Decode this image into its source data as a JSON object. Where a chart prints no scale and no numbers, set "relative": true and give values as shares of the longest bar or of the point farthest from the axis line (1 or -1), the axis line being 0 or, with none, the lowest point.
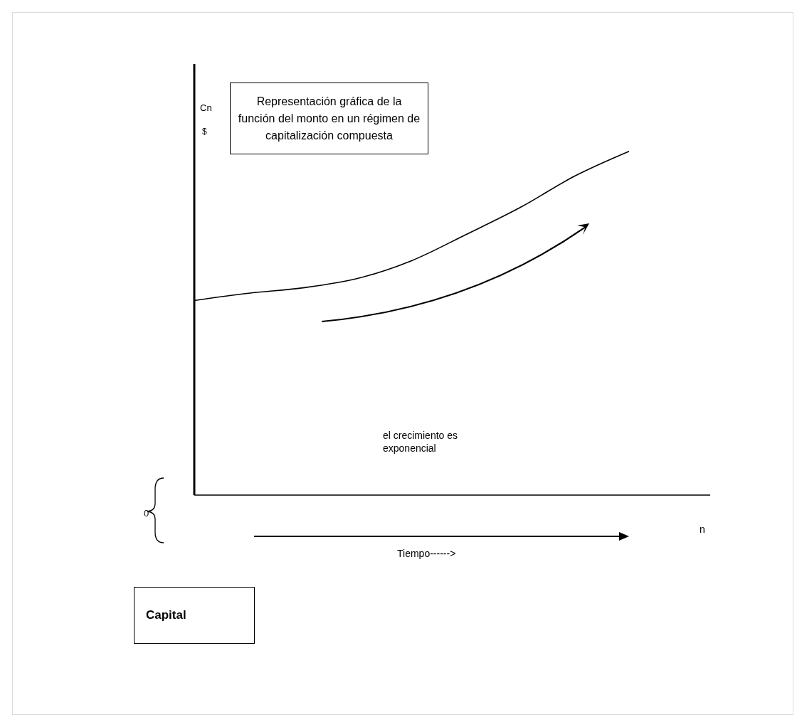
{
  "chart_data": {
    "type": "line",
    "relative": true,
    "title": "Representación gráfica de la función del monto en un régimen de capitalización compuesta",
    "ylabel": "Cn",
    "categories": [
      null,
      null,
      null,
      null,
      null,
      null,
      null,
      null,
      null
    ],
    "series": [
      {
        "color": "#000000",
        "values": [
          0.566,
          0.587,
          0.603,
          0.63,
          0.682,
          0.758,
          0.837,
          0.928,
          1.0
        ]
      }
    ],
    "annotations": [
      "$",
      "0",
      "n",
      "el crecimiento es exponencial",
      "Capital",
      "Tiempo------>"
    ],
    "grid": false,
    "legend": false,
    "marker": "none",
    "line_style": "solid"
  }
}
